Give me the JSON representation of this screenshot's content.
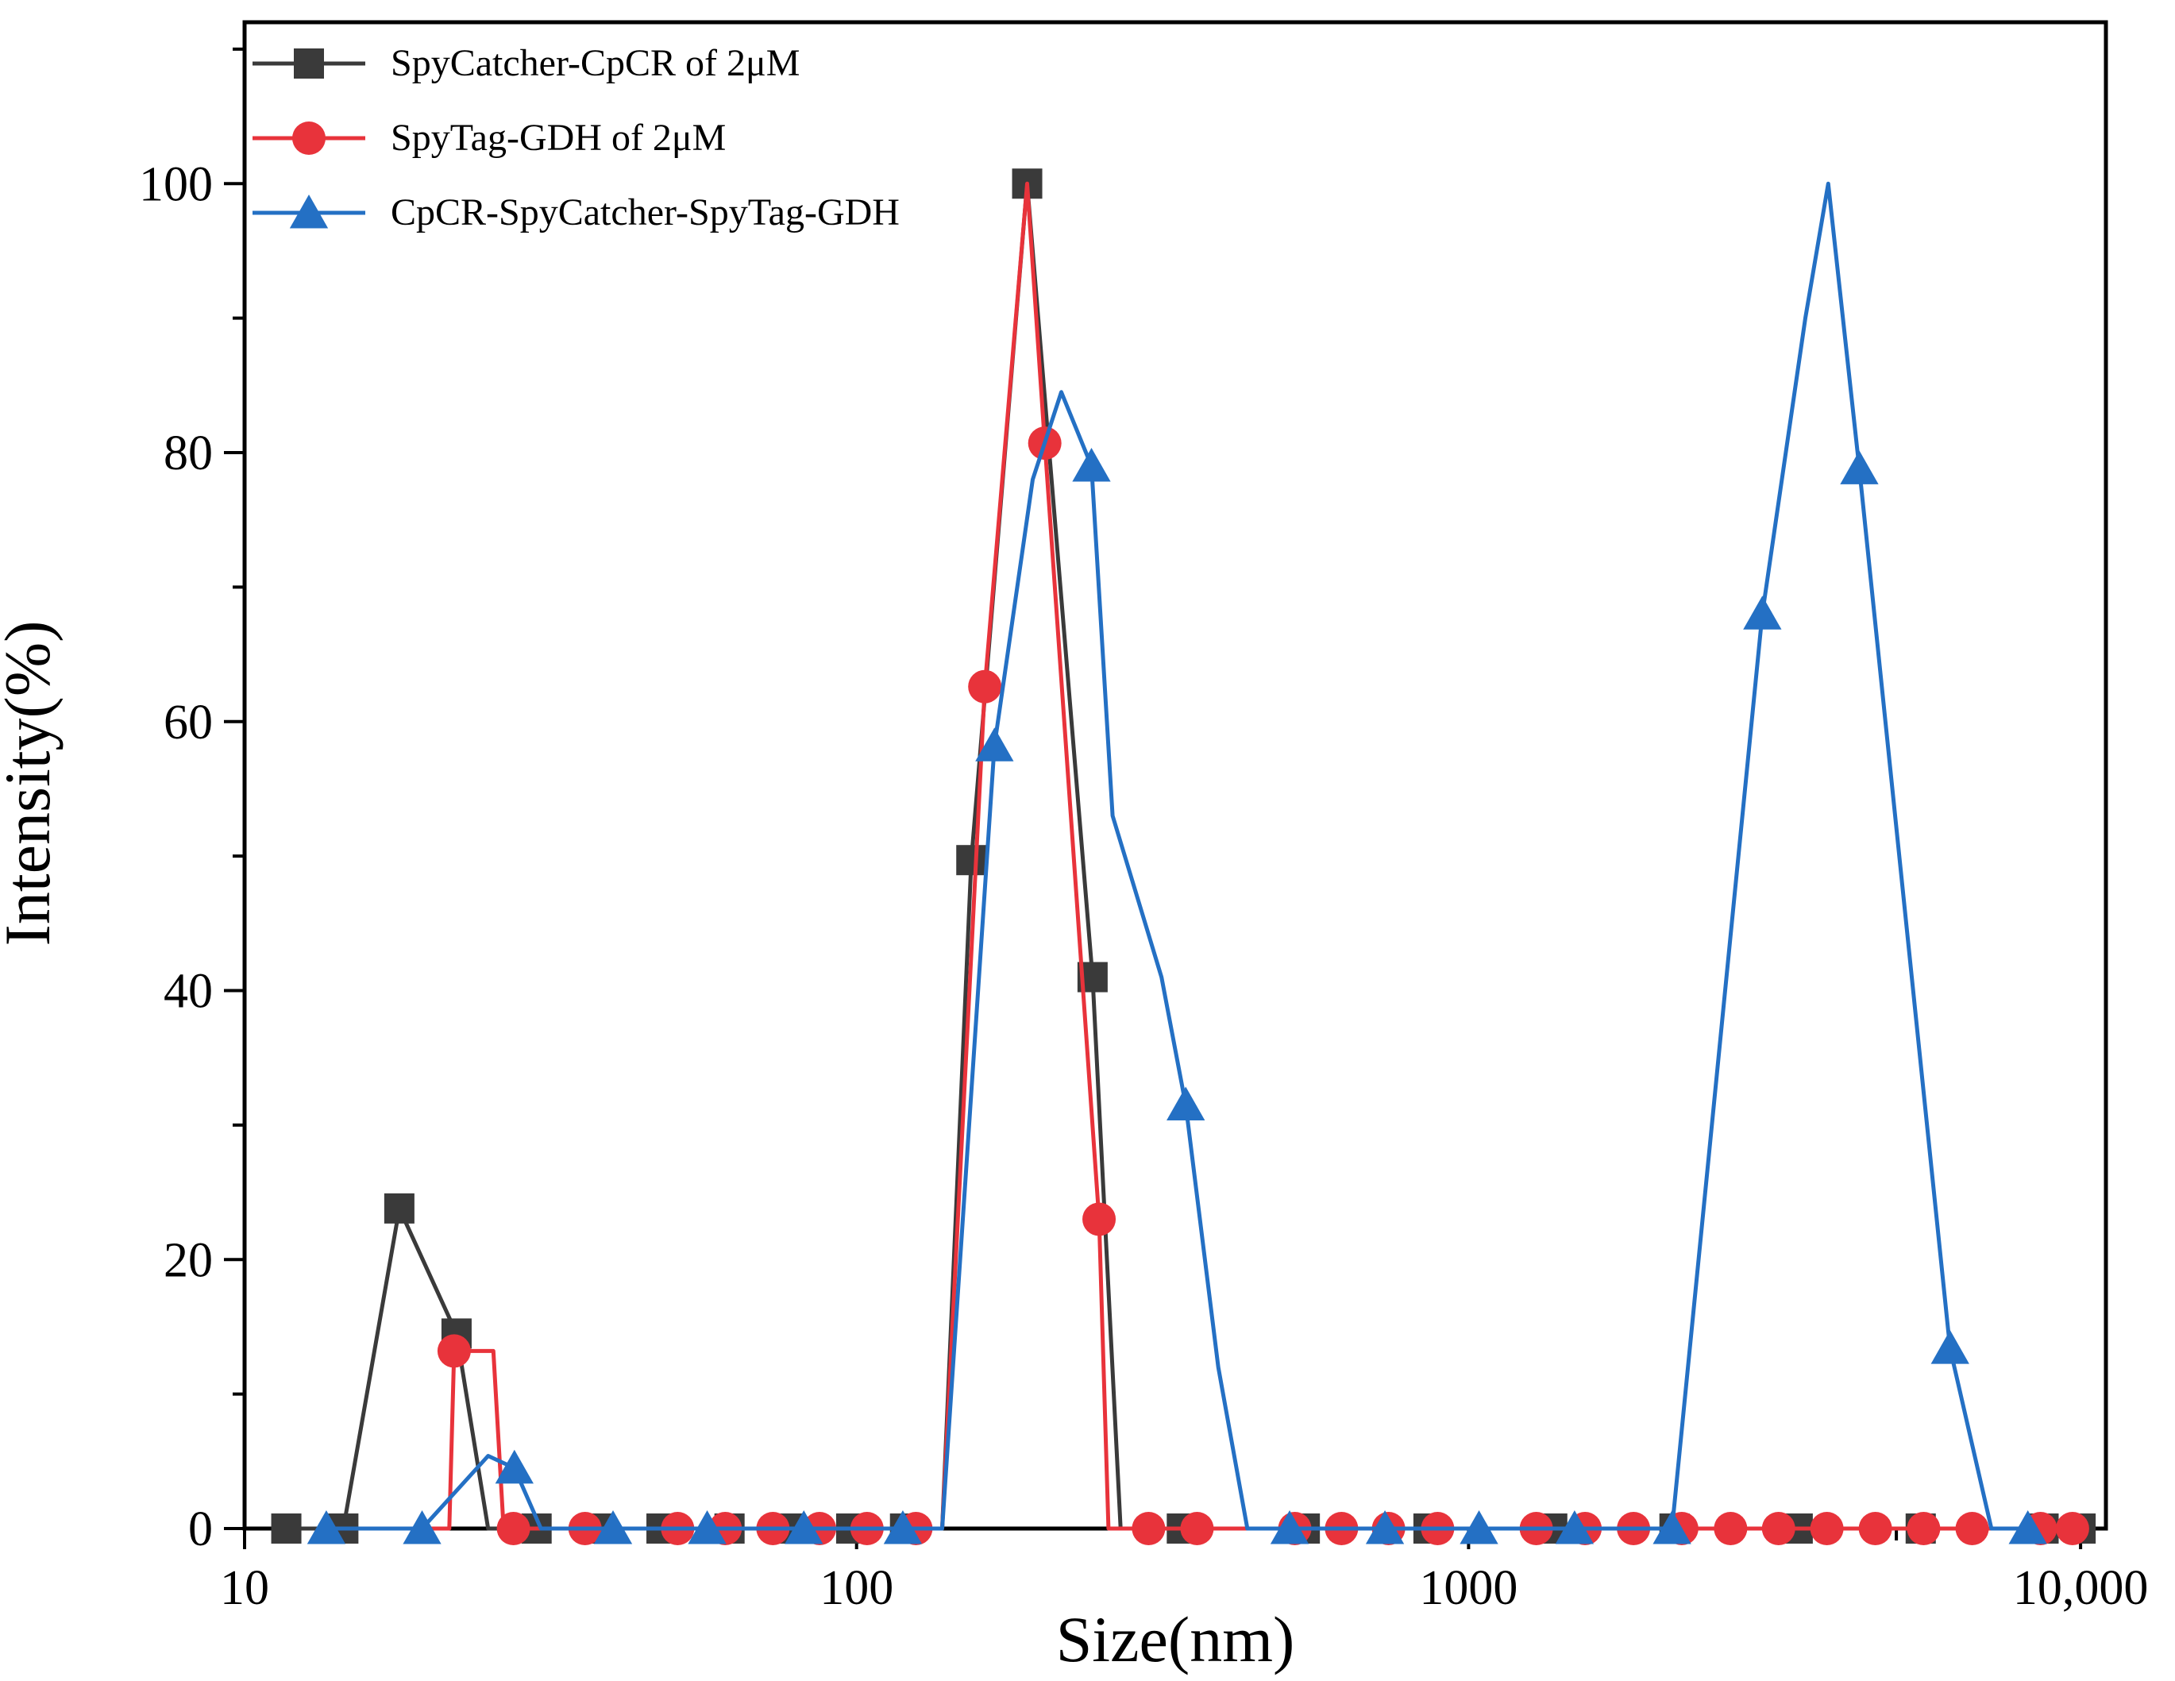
{
  "chart_data": {
    "type": "line",
    "title": "",
    "xlabel": "Size(nm)",
    "ylabel": "Intensity(%)",
    "xscale": "log",
    "xlim": [
      10,
      11000
    ],
    "ylim": [
      0,
      112
    ],
    "grid": false,
    "legend_position": "top-left",
    "x_ticks": [
      {
        "value": 10,
        "label": "10"
      },
      {
        "value": 100,
        "label": "100"
      },
      {
        "value": 1000,
        "label": "1000"
      },
      {
        "value": 10000,
        "label": "10,000"
      }
    ],
    "y_ticks": [
      {
        "value": 0,
        "label": "0"
      },
      {
        "value": 20,
        "label": "20"
      },
      {
        "value": 40,
        "label": "40"
      },
      {
        "value": 60,
        "label": "60"
      },
      {
        "value": 80,
        "label": "80"
      },
      {
        "value": 100,
        "label": "100"
      }
    ],
    "series": [
      {
        "name": "SpyCatcher-CpCR of 2μM",
        "color": "#3a3a3a",
        "marker": "square",
        "line": [
          [
            11.7,
            0
          ],
          [
            14.5,
            0
          ],
          [
            17.9,
            23.8
          ],
          [
            22.2,
            14.5
          ],
          [
            25.0,
            0
          ],
          [
            30,
            0
          ],
          [
            38,
            0
          ],
          [
            48,
            0
          ],
          [
            62,
            0
          ],
          [
            78,
            0
          ],
          [
            98,
            0
          ],
          [
            120,
            0
          ],
          [
            138,
            0
          ],
          [
            154,
            49.7
          ],
          [
            190,
            100
          ],
          [
            243,
            41
          ],
          [
            270,
            0
          ],
          [
            340,
            0
          ],
          [
            430,
            0
          ],
          [
            540,
            0
          ],
          [
            680,
            0
          ],
          [
            860,
            0
          ],
          [
            1080,
            0
          ],
          [
            1370,
            0
          ],
          [
            1720,
            0
          ],
          [
            2170,
            0
          ],
          [
            2740,
            0
          ],
          [
            3450,
            0
          ],
          [
            4350,
            0
          ],
          [
            5480,
            0
          ],
          [
            6900,
            0
          ],
          [
            8700,
            0
          ],
          [
            10000,
            0
          ]
        ],
        "markers": [
          [
            11.7,
            0
          ],
          [
            14.5,
            0
          ],
          [
            17.9,
            23.8
          ],
          [
            22.2,
            14.5
          ],
          [
            30,
            0
          ],
          [
            38,
            0
          ],
          [
            48,
            0
          ],
          [
            62,
            0
          ],
          [
            78,
            0
          ],
          [
            98,
            0
          ],
          [
            120,
            0
          ],
          [
            154,
            49.7
          ],
          [
            190,
            100
          ],
          [
            243,
            41
          ],
          [
            340,
            0
          ],
          [
            540,
            0
          ],
          [
            860,
            0
          ],
          [
            1370,
            0
          ],
          [
            2170,
            0
          ],
          [
            3450,
            0
          ],
          [
            5480,
            0
          ],
          [
            8700,
            0
          ],
          [
            10000,
            0
          ]
        ]
      },
      {
        "name": "SpyTag-GDH of 2μM",
        "color": "#e8333b",
        "marker": "circle",
        "line": [
          [
            18.8,
            0
          ],
          [
            21.6,
            0
          ],
          [
            22.0,
            13.2
          ],
          [
            25.5,
            13.2
          ],
          [
            26.5,
            0
          ],
          [
            30,
            0
          ],
          [
            36,
            0
          ],
          [
            43,
            0
          ],
          [
            51,
            0
          ],
          [
            61,
            0
          ],
          [
            73,
            0
          ],
          [
            87,
            0
          ],
          [
            104,
            0
          ],
          [
            125,
            0
          ],
          [
            138,
            0
          ],
          [
            162,
            62.6
          ],
          [
            190,
            100
          ],
          [
            203,
            80.7
          ],
          [
            249,
            23
          ],
          [
            258,
            0
          ],
          [
            300,
            0
          ],
          [
            360,
            0
          ],
          [
            430,
            0
          ],
          [
            520,
            0
          ],
          [
            620,
            0
          ],
          [
            740,
            0
          ],
          [
            890,
            0
          ],
          [
            1070,
            0
          ],
          [
            1290,
            0
          ],
          [
            1550,
            0
          ],
          [
            1860,
            0
          ],
          [
            2230,
            0
          ],
          [
            2680,
            0
          ],
          [
            3210,
            0
          ],
          [
            3850,
            0
          ],
          [
            4620,
            0
          ],
          [
            5540,
            0
          ],
          [
            6650,
            0
          ],
          [
            7980,
            0
          ],
          [
            9000,
            0
          ],
          [
            9900,
            0
          ]
        ],
        "markers": [
          [
            22.0,
            13.2
          ],
          [
            27.5,
            0
          ],
          [
            36,
            0
          ],
          [
            51,
            0
          ],
          [
            61,
            0
          ],
          [
            73,
            0
          ],
          [
            87,
            0
          ],
          [
            104,
            0
          ],
          [
            125,
            0
          ],
          [
            162,
            62.6
          ],
          [
            203,
            80.7
          ],
          [
            249,
            23
          ],
          [
            300,
            0
          ],
          [
            360,
            0
          ],
          [
            520,
            0
          ],
          [
            620,
            0
          ],
          [
            740,
            0
          ],
          [
            890,
            0
          ],
          [
            1290,
            0
          ],
          [
            1550,
            0
          ],
          [
            1860,
            0
          ],
          [
            2230,
            0
          ],
          [
            2680,
            0
          ],
          [
            3210,
            0
          ],
          [
            3850,
            0
          ],
          [
            4620,
            0
          ],
          [
            5540,
            0
          ],
          [
            6650,
            0
          ],
          [
            8600,
            0
          ],
          [
            9700,
            0
          ]
        ]
      },
      {
        "name": "CpCR-SpyCatcher-SpyTag-GDH",
        "color": "#2470c4",
        "marker": "triangle",
        "line": [
          [
            13.6,
            0
          ],
          [
            19.5,
            0
          ],
          [
            25.0,
            5.4
          ],
          [
            27.6,
            4.5
          ],
          [
            30.5,
            0
          ],
          [
            40,
            0
          ],
          [
            57,
            0
          ],
          [
            82,
            0
          ],
          [
            119,
            0
          ],
          [
            138,
            0
          ],
          [
            168,
            58.2
          ],
          [
            194,
            78
          ],
          [
            216,
            84.5
          ],
          [
            242,
            79
          ],
          [
            262,
            53
          ],
          [
            315,
            41
          ],
          [
            345,
            31.5
          ],
          [
            390,
            12
          ],
          [
            435,
            0
          ],
          [
            510,
            0
          ],
          [
            700,
            0
          ],
          [
            1040,
            0
          ],
          [
            1490,
            0
          ],
          [
            2150,
            0
          ],
          [
            3020,
            68
          ],
          [
            3550,
            90
          ],
          [
            3870,
            100
          ],
          [
            4350,
            78.8
          ],
          [
            6120,
            13.4
          ],
          [
            7150,
            0
          ],
          [
            8200,
            0
          ]
        ],
        "markers": [
          [
            13.6,
            0
          ],
          [
            19.5,
            0
          ],
          [
            27.6,
            4.5
          ],
          [
            40,
            0
          ],
          [
            57,
            0
          ],
          [
            82,
            0
          ],
          [
            119,
            0
          ],
          [
            168,
            58.2
          ],
          [
            242,
            79
          ],
          [
            345,
            31.5
          ],
          [
            510,
            0
          ],
          [
            730,
            0
          ],
          [
            1040,
            0
          ],
          [
            1490,
            0
          ],
          [
            2150,
            0
          ],
          [
            3020,
            68
          ],
          [
            4350,
            78.8
          ],
          [
            6120,
            13.4
          ],
          [
            8200,
            0
          ]
        ]
      }
    ]
  }
}
